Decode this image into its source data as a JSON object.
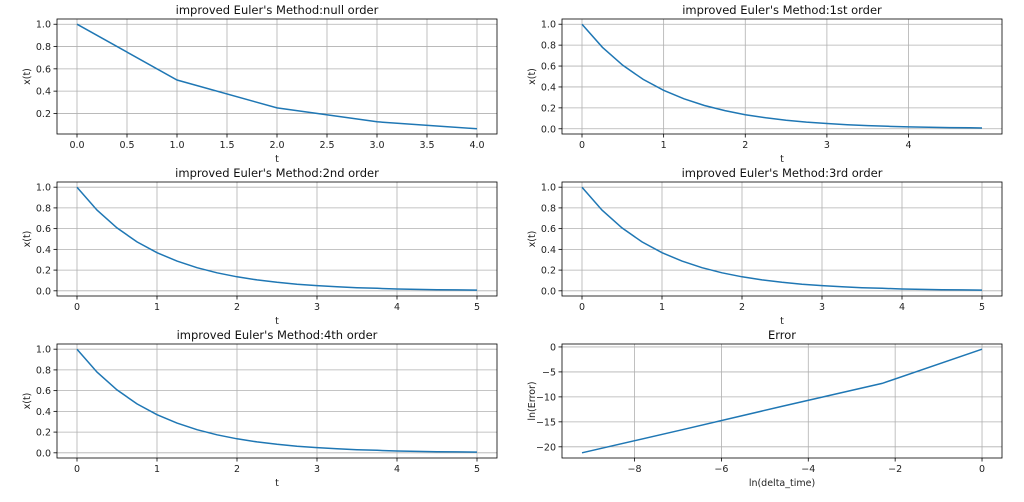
{
  "chart_data": [
    {
      "type": "line",
      "title": "improved Euler's Method:null order",
      "xlabel": "t",
      "ylabel": "x(t)",
      "xlim": [
        -0.2,
        4.2
      ],
      "ylim": [
        0.0156,
        1.047
      ],
      "xticks": [
        0,
        0.5,
        1,
        1.5,
        2,
        2.5,
        3,
        3.5,
        4
      ],
      "xtick_labels": [
        "0.0",
        "0.5",
        "1.0",
        "1.5",
        "2.0",
        "2.5",
        "3.0",
        "3.5",
        "4.0"
      ],
      "yticks": [
        0.2,
        0.4,
        0.6,
        0.8,
        1.0
      ],
      "ytick_labels": [
        "0.2",
        "0.4",
        "0.6",
        "0.8",
        "1.0"
      ],
      "grid": true,
      "x": [
        0,
        1,
        2,
        3,
        4
      ],
      "y": [
        1,
        0.5,
        0.25,
        0.125,
        0.0625
      ]
    },
    {
      "type": "line",
      "title": "improved Euler's Method:1st order",
      "xlabel": "t",
      "ylabel": "x(t)",
      "xlim": [
        -0.245,
        5.145
      ],
      "ylim": [
        -0.05,
        1.05
      ],
      "xticks": [
        0,
        1,
        2,
        3,
        4
      ],
      "xtick_labels": [
        "0",
        "1",
        "2",
        "3",
        "4"
      ],
      "yticks": [
        0,
        0.2,
        0.4,
        0.6,
        0.8,
        1.0
      ],
      "ytick_labels": [
        "0.0",
        "0.2",
        "0.4",
        "0.6",
        "0.8",
        "1.0"
      ],
      "grid": true,
      "x": [
        0,
        0.25,
        0.5,
        0.75,
        1,
        1.25,
        1.5,
        1.75,
        2,
        2.25,
        2.5,
        2.75,
        3,
        3.25,
        3.5,
        3.75,
        4,
        4.25,
        4.5,
        4.75,
        4.9
      ],
      "y": [
        1,
        0.779,
        0.607,
        0.472,
        0.368,
        0.287,
        0.223,
        0.174,
        0.135,
        0.105,
        0.082,
        0.064,
        0.05,
        0.039,
        0.03,
        0.024,
        0.018,
        0.014,
        0.011,
        0.009,
        0.007
      ]
    },
    {
      "type": "line",
      "title": "improved Euler's Method:2nd order",
      "xlabel": "t",
      "ylabel": "x(t)",
      "xlim": [
        -0.25,
        5.25
      ],
      "ylim": [
        -0.05,
        1.05
      ],
      "xticks": [
        0,
        1,
        2,
        3,
        4,
        5
      ],
      "xtick_labels": [
        "0",
        "1",
        "2",
        "3",
        "4",
        "5"
      ],
      "yticks": [
        0,
        0.2,
        0.4,
        0.6,
        0.8,
        1.0
      ],
      "ytick_labels": [
        "0.0",
        "0.2",
        "0.4",
        "0.6",
        "0.8",
        "1.0"
      ],
      "grid": true,
      "x": [
        0,
        0.25,
        0.5,
        0.75,
        1,
        1.25,
        1.5,
        1.75,
        2,
        2.25,
        2.5,
        2.75,
        3,
        3.25,
        3.5,
        3.75,
        4,
        4.25,
        4.5,
        4.75,
        5
      ],
      "y": [
        1,
        0.779,
        0.607,
        0.472,
        0.368,
        0.287,
        0.223,
        0.174,
        0.135,
        0.105,
        0.082,
        0.064,
        0.05,
        0.039,
        0.03,
        0.024,
        0.018,
        0.014,
        0.011,
        0.009,
        0.007
      ]
    },
    {
      "type": "line",
      "title": "improved Euler's Method:3rd order",
      "xlabel": "t",
      "ylabel": "x(t)",
      "xlim": [
        -0.25,
        5.25
      ],
      "ylim": [
        -0.05,
        1.05
      ],
      "xticks": [
        0,
        1,
        2,
        3,
        4,
        5
      ],
      "xtick_labels": [
        "0",
        "1",
        "2",
        "3",
        "4",
        "5"
      ],
      "yticks": [
        0,
        0.2,
        0.4,
        0.6,
        0.8,
        1.0
      ],
      "ytick_labels": [
        "0.0",
        "0.2",
        "0.4",
        "0.6",
        "0.8",
        "1.0"
      ],
      "grid": true,
      "x": [
        0,
        0.25,
        0.5,
        0.75,
        1,
        1.25,
        1.5,
        1.75,
        2,
        2.25,
        2.5,
        2.75,
        3,
        3.25,
        3.5,
        3.75,
        4,
        4.25,
        4.5,
        4.75,
        5
      ],
      "y": [
        1,
        0.779,
        0.607,
        0.472,
        0.368,
        0.287,
        0.223,
        0.174,
        0.135,
        0.105,
        0.082,
        0.064,
        0.05,
        0.039,
        0.03,
        0.024,
        0.018,
        0.014,
        0.011,
        0.009,
        0.007
      ]
    },
    {
      "type": "line",
      "title": "improved Euler's Method:4th order",
      "xlabel": "t",
      "ylabel": "x(t)",
      "xlim": [
        -0.25,
        5.25
      ],
      "ylim": [
        -0.05,
        1.05
      ],
      "xticks": [
        0,
        1,
        2,
        3,
        4,
        5
      ],
      "xtick_labels": [
        "0",
        "1",
        "2",
        "3",
        "4",
        "5"
      ],
      "yticks": [
        0,
        0.2,
        0.4,
        0.6,
        0.8,
        1.0
      ],
      "ytick_labels": [
        "0.0",
        "0.2",
        "0.4",
        "0.6",
        "0.8",
        "1.0"
      ],
      "grid": true,
      "x": [
        0,
        0.25,
        0.5,
        0.75,
        1,
        1.25,
        1.5,
        1.75,
        2,
        2.25,
        2.5,
        2.75,
        3,
        3.25,
        3.5,
        3.75,
        4,
        4.25,
        4.5,
        4.75,
        5
      ],
      "y": [
        1,
        0.779,
        0.607,
        0.472,
        0.368,
        0.287,
        0.223,
        0.174,
        0.135,
        0.105,
        0.082,
        0.064,
        0.05,
        0.039,
        0.03,
        0.024,
        0.018,
        0.014,
        0.011,
        0.009,
        0.007
      ]
    },
    {
      "type": "line",
      "title": "Error",
      "xlabel": "ln(delta_time)",
      "ylabel": "ln(Error)",
      "xlim": [
        -9.67,
        0.46
      ],
      "ylim": [
        -22.24,
        0.59
      ],
      "xticks": [
        -8,
        -6,
        -4,
        -2,
        0
      ],
      "xtick_labels": [
        "−8",
        "−6",
        "−4",
        "−2",
        "0"
      ],
      "yticks": [
        -20,
        -15,
        -10,
        -5,
        0
      ],
      "ytick_labels": [
        "−20",
        "−15",
        "−10",
        "−5",
        "0"
      ],
      "grid": true,
      "x": [
        -9.21,
        -6.91,
        -4.61,
        -2.3,
        0
      ],
      "y": [
        -21.2,
        -16.6,
        -11.9,
        -7.3,
        -0.45
      ]
    }
  ],
  "colors": {
    "line": "#1f77b4",
    "grid": "#b0b0b0",
    "axes": "#000000"
  }
}
